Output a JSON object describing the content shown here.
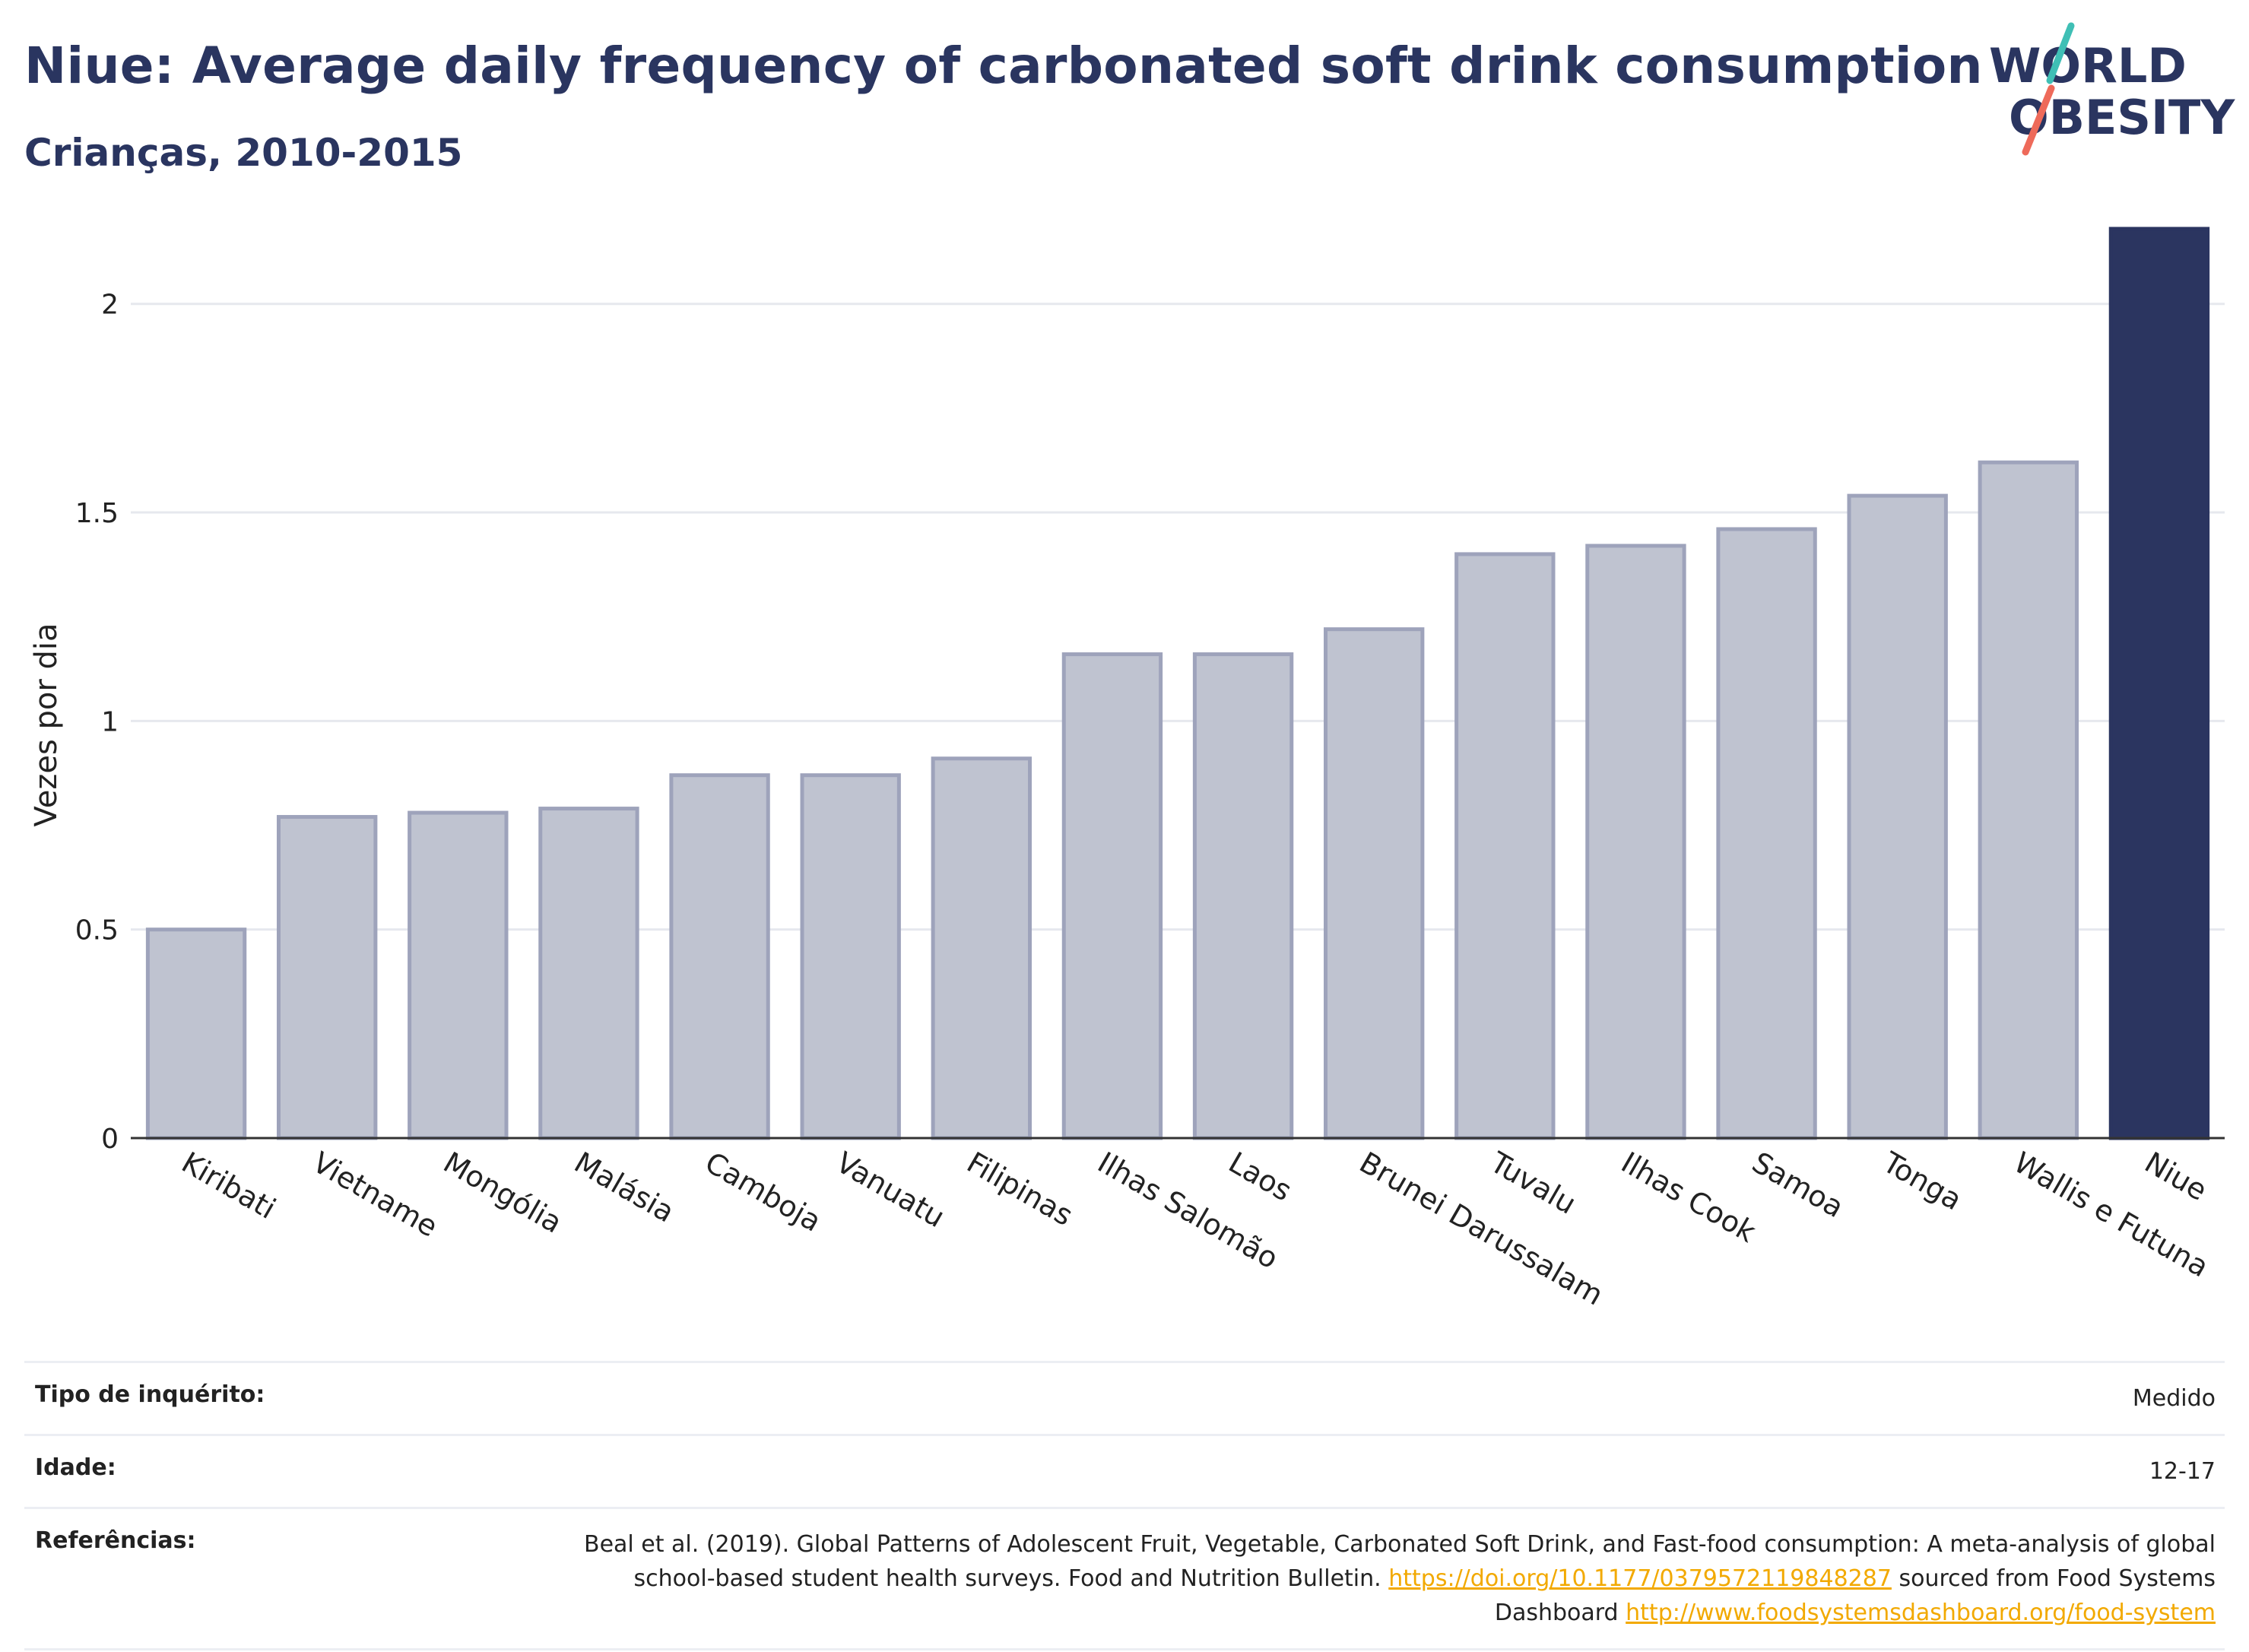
{
  "header": {
    "title": "Niue: Average daily frequency of carbonated soft drink consumption",
    "subtitle": "Crianças, 2010-2015",
    "logo_line1": "WORLD",
    "logo_line2": "OBESITY"
  },
  "colors": {
    "bar_default": "#bfc3d0",
    "bar_border": "#9ea3bb",
    "bar_highlight": "#2b3560",
    "title": "#2a3560",
    "link": "#f2a900",
    "logo_teal": "#3fbfb5",
    "logo_coral": "#ee6a5a"
  },
  "chart_data": {
    "type": "bar",
    "title": "Niue: Average daily frequency of carbonated soft drink consumption",
    "subtitle": "Crianças, 2010-2015",
    "xlabel": "",
    "ylabel": "Vezes por dia",
    "ylim": [
      0,
      2.2
    ],
    "yticks": [
      0,
      0.5,
      1,
      1.5,
      2
    ],
    "ytick_labels": [
      "0",
      "0.5",
      "1",
      "1.5",
      "2"
    ],
    "grid": true,
    "highlight": "Niue",
    "categories": [
      "Kiribati",
      "Vietname",
      "Mongólia",
      "Malásia",
      "Camboja",
      "Vanuatu",
      "Filipinas",
      "Ilhas Salomão",
      "Laos",
      "Brunei Darussalam",
      "Tuvalu",
      "Ilhas Cook",
      "Samoa",
      "Tonga",
      "Wallis e Futuna",
      "Niue"
    ],
    "values": [
      0.5,
      0.77,
      0.78,
      0.79,
      0.87,
      0.87,
      0.91,
      1.16,
      1.16,
      1.22,
      1.4,
      1.42,
      1.46,
      1.54,
      1.62,
      2.18
    ]
  },
  "info": {
    "survey_label": "Tipo de inquérito:",
    "survey_value": "Medido",
    "age_label": "Idade:",
    "age_value": "12-17",
    "refs_label": "Referências:",
    "refs_text_1": "Beal et al. (2019). Global Patterns of Adolescent Fruit, Vegetable, Carbonated Soft Drink, and Fast-food consumption: A meta-analysis of global school-based student health surveys. Food and Nutrition Bulletin.",
    "refs_link_1": "https://doi.org/10.1177/0379572119848287",
    "refs_text_2": "sourced from Food Systems Dashboard",
    "refs_link_2": "http://www.foodsystemsdashboard.org/food-system"
  }
}
